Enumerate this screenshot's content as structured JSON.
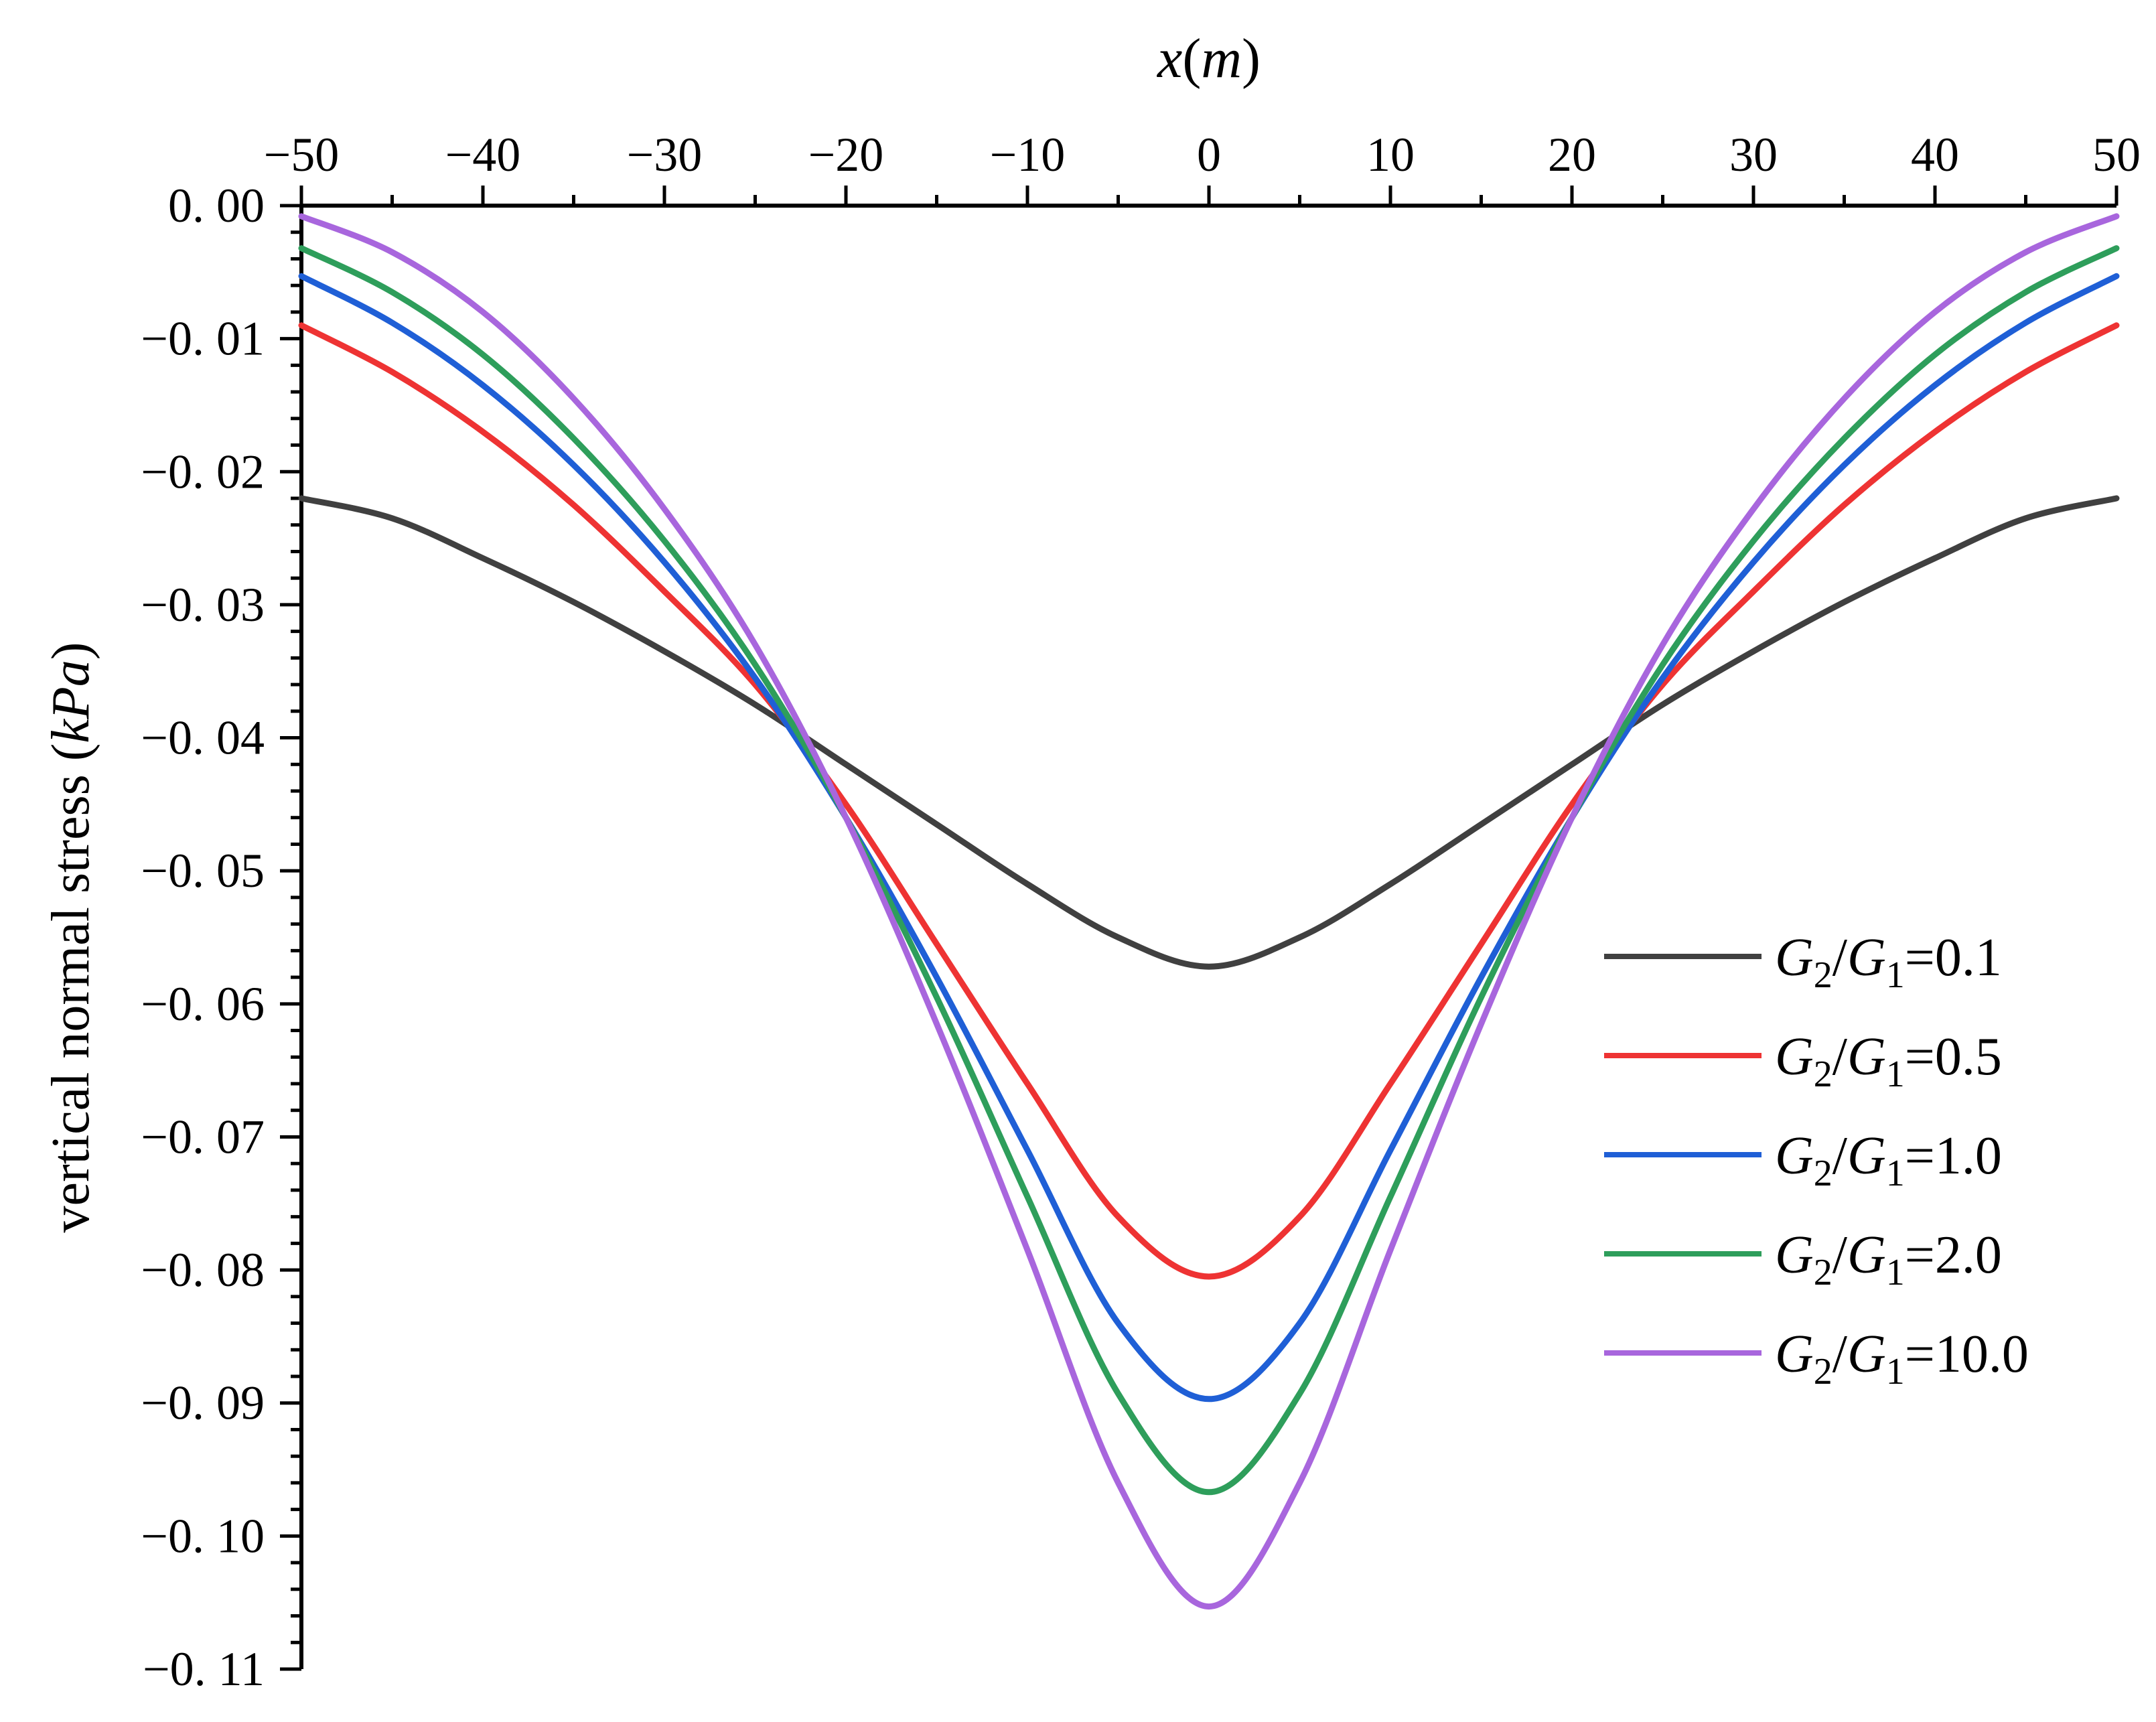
{
  "chart_data": {
    "type": "line",
    "xlabel": "x(m)",
    "xlabel_var": "x",
    "xlabel_unit": "m",
    "ylabel": "vertical normal stress (kPa)",
    "ylabel_text": "vertical normal stress ",
    "ylabel_unit": "kPa",
    "xlim": [
      -50,
      50
    ],
    "ylim": [
      -0.11,
      0.0
    ],
    "x_ticks": [
      -50,
      -40,
      -30,
      -20,
      -10,
      0,
      10,
      20,
      30,
      40,
      50
    ],
    "x_tick_labels": [
      "−50",
      "−40",
      "−30",
      "−20",
      "−10",
      "0",
      "10",
      "20",
      "30",
      "40",
      "50"
    ],
    "y_ticks": [
      0.0,
      -0.01,
      -0.02,
      -0.03,
      -0.04,
      -0.05,
      -0.06,
      -0.07,
      -0.08,
      -0.09,
      -0.1,
      -0.11
    ],
    "y_tick_labels": [
      "0. 00",
      "−0. 01",
      "−0. 02",
      "−0. 03",
      "−0. 04",
      "−0. 05",
      "−0. 06",
      "−0. 07",
      "−0. 08",
      "−0. 09",
      "−0. 10",
      "−0. 11"
    ],
    "grid": false,
    "legend_position": "right",
    "x": [
      -50,
      -45,
      -40,
      -35,
      -30,
      -25,
      -20,
      -15,
      -10,
      -5,
      0,
      5,
      10,
      15,
      20,
      25,
      30,
      35,
      40,
      45,
      50
    ],
    "series": [
      {
        "name": "G2/G1=0.1",
        "ratio": "0.1",
        "color": "#404040",
        "values": [
          -0.022,
          -0.0235,
          -0.0265,
          -0.0298,
          -0.0335,
          -0.0375,
          -0.042,
          -0.0465,
          -0.051,
          -0.055,
          -0.0572,
          -0.055,
          -0.051,
          -0.0465,
          -0.042,
          -0.0375,
          -0.0335,
          -0.0298,
          -0.0265,
          -0.0235,
          -0.022
        ]
      },
      {
        "name": "G2/G1=0.5",
        "ratio": "0.5",
        "color": "#ee3333",
        "values": [
          -0.009,
          -0.0125,
          -0.017,
          -0.0225,
          -0.029,
          -0.036,
          -0.045,
          -0.0555,
          -0.066,
          -0.076,
          -0.0805,
          -0.076,
          -0.066,
          -0.0555,
          -0.045,
          -0.036,
          -0.029,
          -0.0225,
          -0.017,
          -0.0125,
          -0.009
        ]
      },
      {
        "name": "G2/G1=1.0",
        "ratio": "1.0",
        "color": "#1f5fd6",
        "values": [
          -0.0053,
          -0.0088,
          -0.0135,
          -0.0195,
          -0.0268,
          -0.0355,
          -0.046,
          -0.058,
          -0.071,
          -0.084,
          -0.0897,
          -0.084,
          -0.071,
          -0.058,
          -0.046,
          -0.0355,
          -0.0268,
          -0.0195,
          -0.0135,
          -0.0088,
          -0.0053
        ]
      },
      {
        "name": "G2/G1=2.0",
        "ratio": "2.0",
        "color": "#2e9e5b",
        "values": [
          -0.0032,
          -0.0065,
          -0.0112,
          -0.0175,
          -0.0252,
          -0.0345,
          -0.046,
          -0.0595,
          -0.0745,
          -0.0893,
          -0.0967,
          -0.0893,
          -0.0745,
          -0.0595,
          -0.046,
          -0.0345,
          -0.0252,
          -0.0175,
          -0.0112,
          -0.0065,
          -0.0032
        ]
      },
      {
        "name": "G2/G1=10.0",
        "ratio": "10.0",
        "color": "#a866dd",
        "values": [
          -0.0008,
          -0.0035,
          -0.008,
          -0.0145,
          -0.0228,
          -0.033,
          -0.046,
          -0.0615,
          -0.0785,
          -0.096,
          -0.1053,
          -0.096,
          -0.0785,
          -0.0615,
          -0.046,
          -0.033,
          -0.0228,
          -0.0145,
          -0.008,
          -0.0035,
          -0.0008
        ]
      }
    ]
  }
}
